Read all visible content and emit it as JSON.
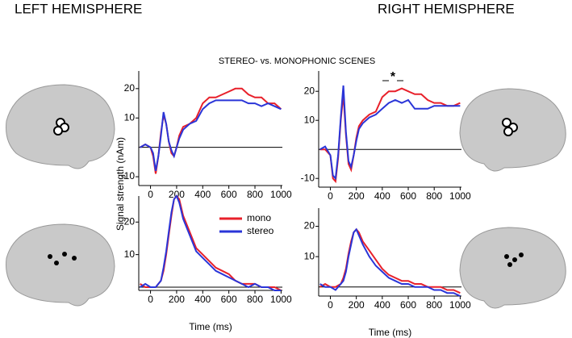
{
  "figure": {
    "left_title": "LEFT HEMISPHERE",
    "right_title": "RIGHT HEMISPHERE",
    "subtitle": "STEREO- vs. MONOPHONIC SCENES",
    "ylabel": "Signal strength (nAm)"
  },
  "chart_data": [
    {
      "type": "line",
      "x": [
        -80,
        -40,
        0,
        20,
        40,
        60,
        80,
        100,
        120,
        140,
        160,
        180,
        200,
        220,
        250,
        300,
        350,
        400,
        450,
        500,
        550,
        600,
        650,
        700,
        750,
        800,
        850,
        900,
        950,
        1000
      ],
      "series": [
        {
          "color": "#e8202a",
          "values": [
            0,
            1,
            0,
            -3,
            -9,
            -3,
            5,
            11,
            8,
            2,
            -2,
            -3,
            0,
            4,
            7,
            8,
            10,
            15,
            17,
            17,
            18,
            19,
            20,
            20,
            18,
            17,
            17,
            15,
            15,
            13
          ]
        },
        {
          "color": "#2a35d8",
          "values": [
            0,
            1,
            0,
            -2,
            -8,
            -3,
            4,
            12,
            8,
            2,
            -1,
            -3,
            0,
            3,
            6,
            8,
            9,
            13,
            15,
            16,
            16,
            16,
            16,
            16,
            15,
            15,
            14,
            15,
            14,
            13
          ]
        }
      ],
      "xlim": [
        -90,
        1010
      ],
      "ylim": [
        -13,
        26
      ],
      "xticks": [
        0,
        200,
        400,
        600,
        800,
        1000
      ],
      "yticks": [
        -10,
        10,
        20
      ]
    },
    {
      "type": "line",
      "x": [
        -80,
        -40,
        0,
        20,
        40,
        60,
        80,
        100,
        120,
        140,
        160,
        180,
        200,
        220,
        250,
        300,
        350,
        400,
        450,
        500,
        550,
        600,
        650,
        700,
        750,
        800,
        850,
        900,
        950,
        1000
      ],
      "series": [
        {
          "color": "#e8202a",
          "values": [
            0,
            0,
            -2,
            -10,
            -11,
            -3,
            10,
            19,
            5,
            -5,
            -7,
            -2,
            4,
            8,
            10,
            12,
            13,
            18,
            20,
            20,
            21,
            20,
            19,
            19,
            17,
            16,
            16,
            15,
            15,
            16
          ]
        },
        {
          "color": "#2a35d8",
          "values": [
            0,
            1,
            -2,
            -9,
            -10,
            -2,
            11,
            22,
            6,
            -4,
            -6,
            -2,
            3,
            7,
            9,
            11,
            12,
            14,
            16,
            17,
            16,
            17,
            14,
            14,
            14,
            15,
            15,
            15,
            15,
            15
          ]
        }
      ],
      "annotation": "*",
      "xlim": [
        -90,
        1010
      ],
      "ylim": [
        -13,
        27
      ],
      "xticks": [
        0,
        200,
        400,
        600,
        800,
        1000
      ],
      "yticks": [
        -10,
        10,
        20
      ]
    },
    {
      "type": "line",
      "x": [
        -80,
        -40,
        0,
        40,
        80,
        100,
        120,
        140,
        160,
        180,
        200,
        220,
        250,
        300,
        350,
        400,
        450,
        500,
        550,
        600,
        650,
        700,
        750,
        800,
        850,
        900,
        950,
        1000
      ],
      "series": [
        {
          "name": "mono",
          "color": "#e8202a",
          "values": [
            1,
            0,
            0,
            0,
            2,
            5,
            10,
            16,
            22,
            27,
            28,
            27,
            22,
            17,
            12,
            10,
            8,
            6,
            5,
            4,
            2,
            1,
            1,
            1,
            0,
            0,
            0,
            -1
          ]
        },
        {
          "name": "stereo",
          "color": "#2a35d8",
          "values": [
            0,
            1,
            0,
            0,
            2,
            6,
            11,
            17,
            23,
            27,
            28,
            26,
            21,
            16,
            11,
            9,
            7,
            5,
            4,
            3,
            2,
            1,
            0,
            1,
            0,
            0,
            -1,
            -1
          ]
        }
      ],
      "legend": "upper right",
      "xlabel": "Time (ms)",
      "xlim": [
        -90,
        1010
      ],
      "ylim": [
        -1,
        28
      ],
      "xticks": [
        0,
        200,
        400,
        600,
        800,
        1000
      ],
      "yticks": [
        10,
        20
      ]
    },
    {
      "type": "line",
      "x": [
        -80,
        -40,
        0,
        40,
        80,
        100,
        120,
        140,
        160,
        180,
        200,
        220,
        250,
        300,
        350,
        400,
        450,
        500,
        550,
        600,
        650,
        700,
        750,
        800,
        850,
        900,
        950,
        1000
      ],
      "series": [
        {
          "color": "#e8202a",
          "values": [
            0,
            1,
            0,
            0,
            1,
            3,
            6,
            11,
            15,
            18,
            19,
            18,
            15,
            12,
            9,
            6,
            4,
            3,
            2,
            2,
            1,
            1,
            0,
            0,
            0,
            -1,
            -1,
            -2
          ]
        },
        {
          "color": "#2a35d8",
          "values": [
            1,
            0,
            0,
            -1,
            1,
            2,
            5,
            10,
            14,
            18,
            19,
            17,
            14,
            10,
            7,
            5,
            3,
            2,
            1,
            1,
            0,
            0,
            0,
            -1,
            -1,
            -2,
            -2,
            -3
          ]
        }
      ],
      "xlabel": "Time (ms)",
      "xlim": [
        -90,
        1010
      ],
      "ylim": [
        -3,
        26
      ],
      "xticks": [
        0,
        200,
        400,
        600,
        800,
        1000
      ],
      "yticks": [
        10,
        20
      ]
    }
  ]
}
